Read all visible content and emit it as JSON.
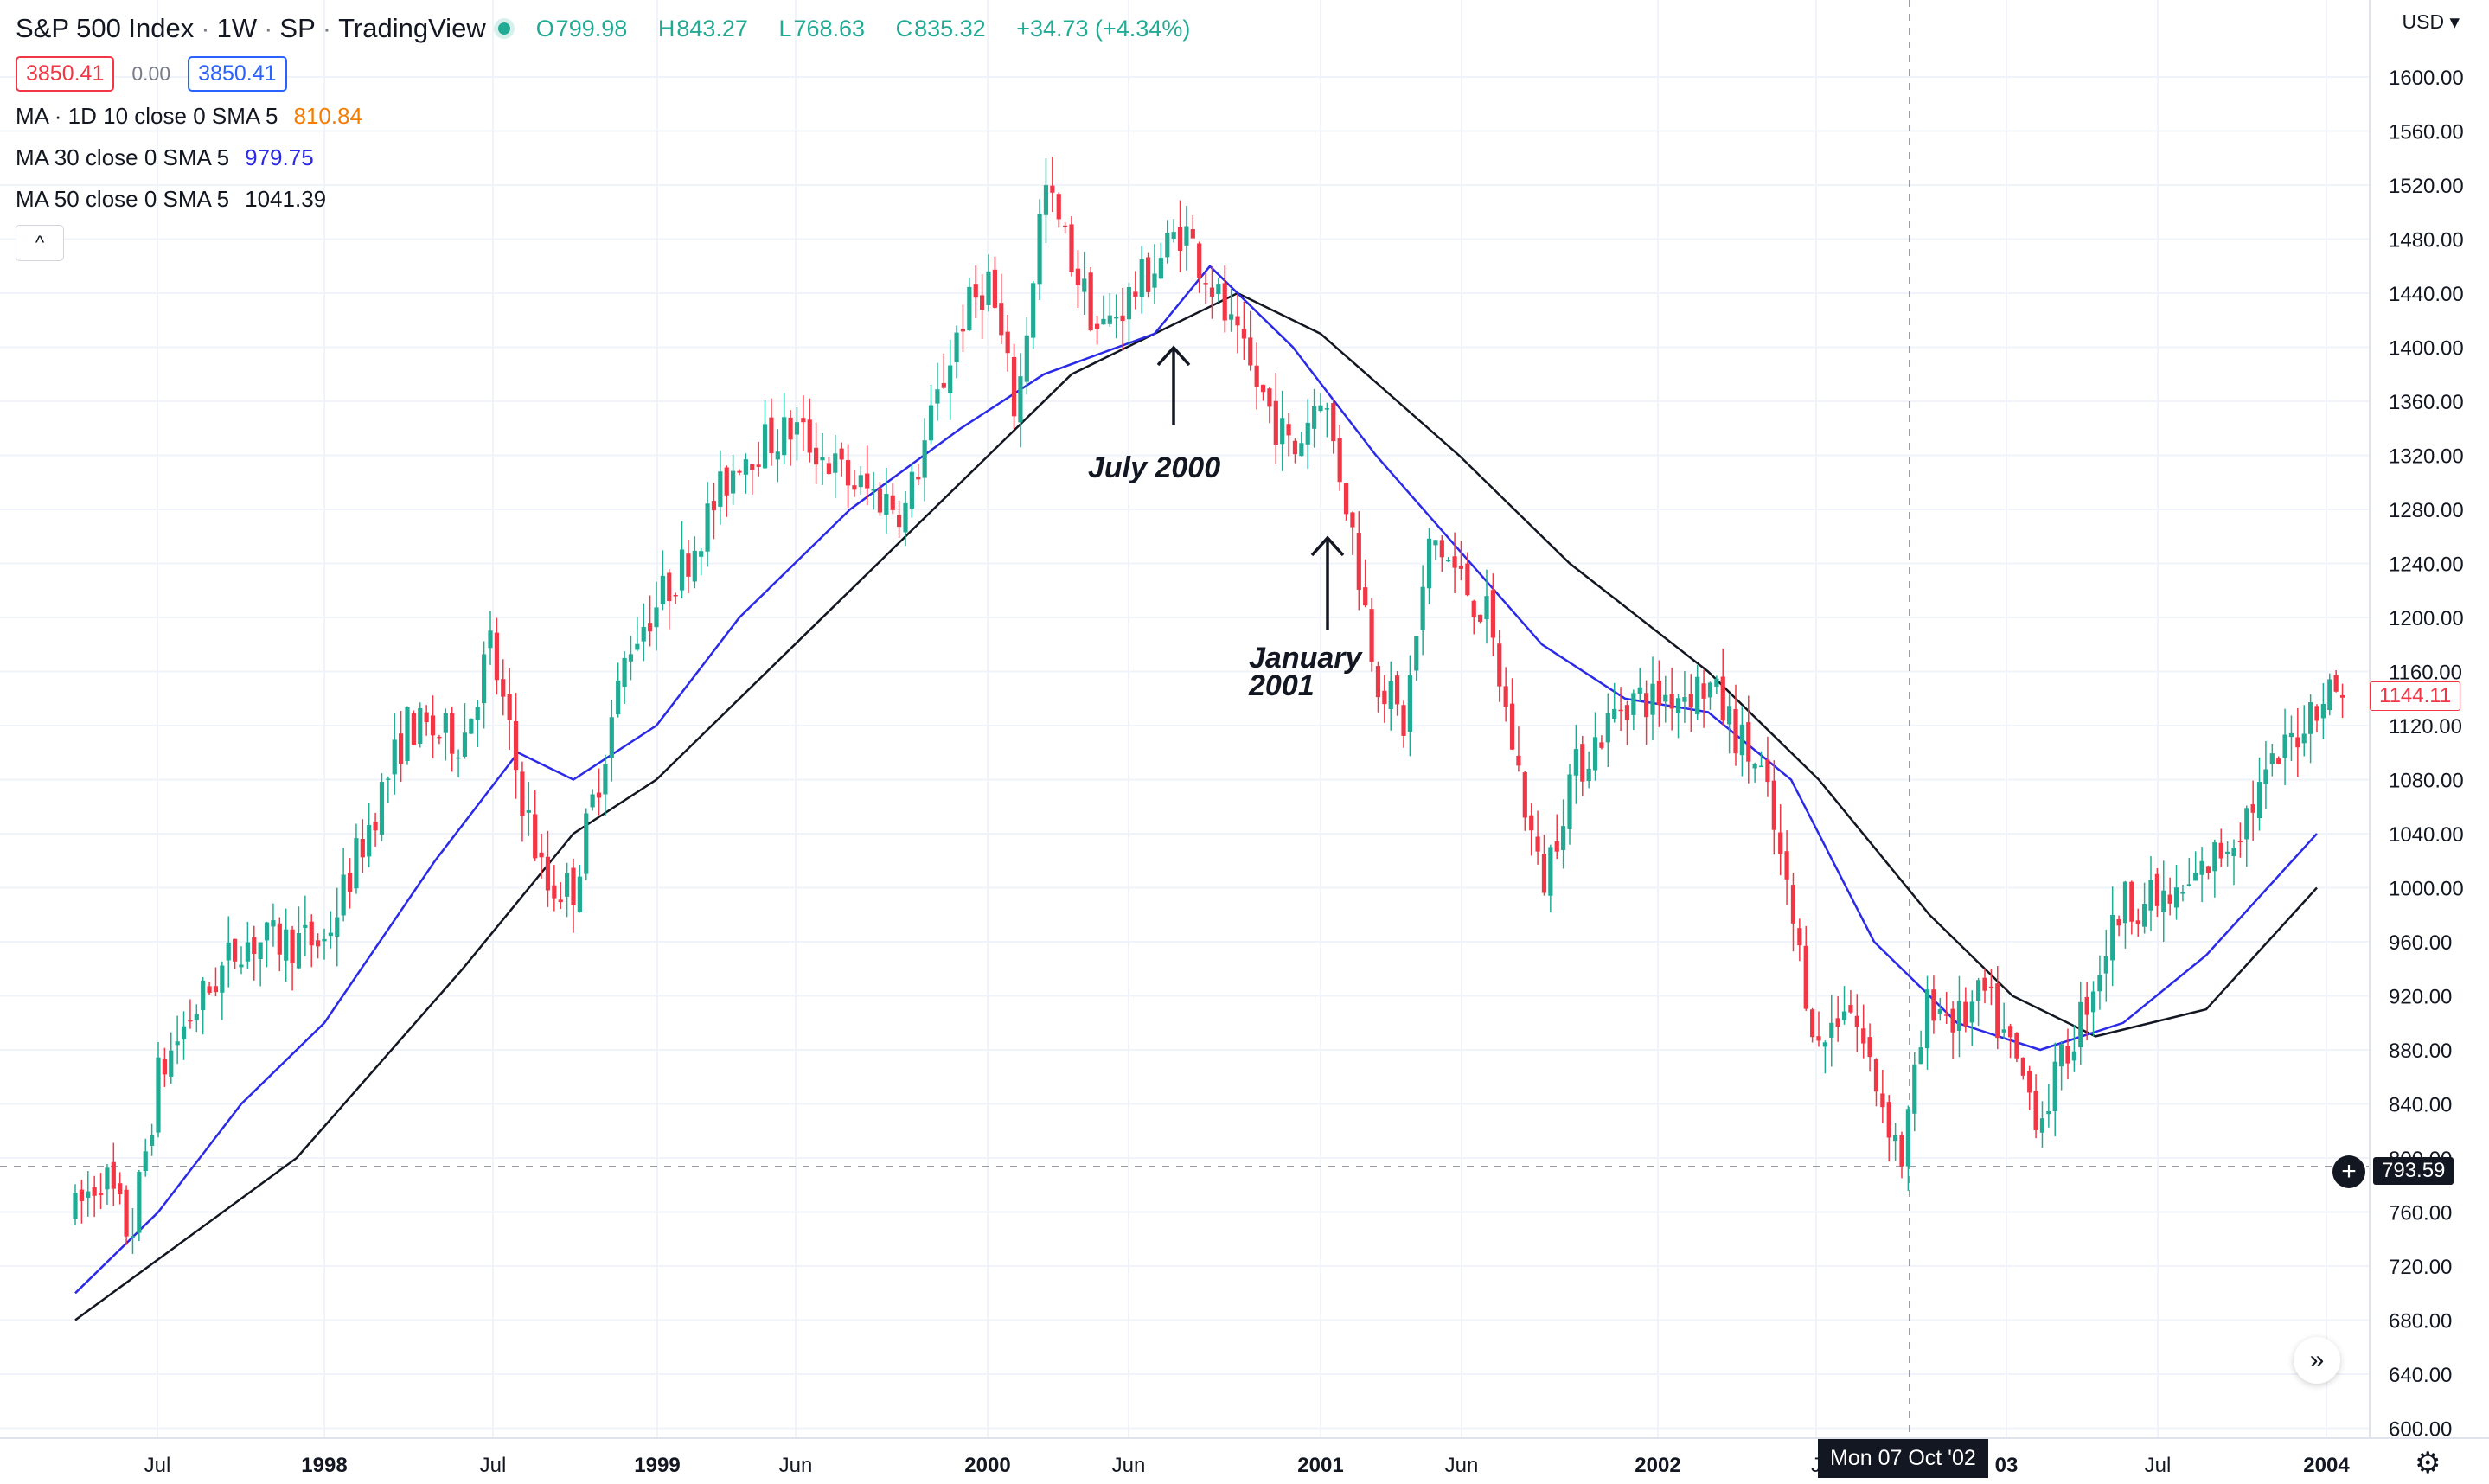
{
  "header": {
    "symbol": "S&P 500 Index",
    "sep1": "·",
    "interval": "1W",
    "sep2": "·",
    "exchange": "SP",
    "sep3": "·",
    "source": "TradingView",
    "ohlc": {
      "open_label": "O",
      "open": "799.98",
      "high_label": "H",
      "high": "843.27",
      "low_label": "L",
      "low": "768.63",
      "close_label": "C",
      "close": "835.32",
      "change": "+34.73 (+4.34%)"
    }
  },
  "price_boxes": {
    "sell": "3850.41",
    "spread": "0.00",
    "buy": "3850.41"
  },
  "indicators": [
    {
      "label": "MA · 1D 10 close 0 SMA 5",
      "value": "810.84",
      "color": "#f57c00"
    },
    {
      "label": "MA 30 close 0 SMA 5",
      "value": "979.75",
      "color": "#2a2ae8"
    },
    {
      "label": "MA 50 close 0 SMA 5",
      "value": "1041.39",
      "color": "#131722"
    }
  ],
  "collapse_icon": "chevron-up-icon",
  "collapse_glyph": "^",
  "currency_label": "USD ▾",
  "current_price_tag": "1144.11",
  "crosshair_price_tag": "793.59",
  "crosshair_date": "Mon 07 Oct '02",
  "crosshair_plus_glyph": "+",
  "scroll_glyph": "»",
  "settings_glyph": "⚙",
  "annotations": {
    "july2000": "July 2000",
    "jan2001_line1": "January",
    "jan2001_line2": "2001"
  },
  "colors": {
    "up": "#22ab94",
    "down": "#f23645",
    "ma30": "#2a2ae8",
    "ma50": "#131722",
    "ma10": "#f57c00"
  },
  "chart_data": {
    "type": "candlestick",
    "y_axis_labels": [
      "1600.00",
      "1560.00",
      "1520.00",
      "1480.00",
      "1440.00",
      "1400.00",
      "1360.00",
      "1320.00",
      "1280.00",
      "1240.00",
      "1200.00",
      "1160.00",
      "1120.00",
      "1080.00",
      "1040.00",
      "1000.00",
      "960.00",
      "920.00",
      "880.00",
      "840.00",
      "800.00",
      "760.00",
      "720.00",
      "680.00",
      "640.00",
      "600.00"
    ],
    "ylim": [
      600,
      1600
    ],
    "x_axis_labels": [
      {
        "label": "Jul",
        "bold": false
      },
      {
        "label": "1998",
        "bold": true
      },
      {
        "label": "Jul",
        "bold": false
      },
      {
        "label": "1999",
        "bold": true
      },
      {
        "label": "Jun",
        "bold": false
      },
      {
        "label": "2000",
        "bold": true
      },
      {
        "label": "Jun",
        "bold": false
      },
      {
        "label": "2001",
        "bold": true
      },
      {
        "label": "Jun",
        "bold": false
      },
      {
        "label": "2002",
        "bold": true
      },
      {
        "label": "J",
        "bold": false
      },
      {
        "label": "03",
        "bold": true
      },
      {
        "label": "Jul",
        "bold": false
      },
      {
        "label": "2004",
        "bold": true
      }
    ],
    "price_path": [
      [
        "1997-04",
        760
      ],
      [
        "1997-05",
        790
      ],
      [
        "1997-06",
        740
      ],
      [
        "1997-07",
        860
      ],
      [
        "1997-08",
        900
      ],
      [
        "1997-10",
        960
      ],
      [
        "1998-01",
        960
      ],
      [
        "1998-04",
        1120
      ],
      [
        "1998-06",
        1110
      ],
      [
        "1998-07",
        1180
      ],
      [
        "1998-08",
        1080
      ],
      [
        "1998-09",
        1000
      ],
      [
        "1998-10",
        1000
      ],
      [
        "1998-12",
        1180
      ],
      [
        "1999-02",
        1240
      ],
      [
        "1999-04",
        1320
      ],
      [
        "1999-06",
        1340
      ],
      [
        "1999-08",
        1300
      ],
      [
        "1999-10",
        1280
      ],
      [
        "1999-12",
        1420
      ],
      [
        "2000-01",
        1450
      ],
      [
        "2000-02",
        1350
      ],
      [
        "2000-03",
        1520
      ],
      [
        "2000-05",
        1410
      ],
      [
        "2000-07",
        1460
      ],
      [
        "2000-08",
        1490
      ],
      [
        "2000-09",
        1450
      ],
      [
        "2000-10",
        1400
      ],
      [
        "2000-12",
        1320
      ],
      [
        "2001-01",
        1370
      ],
      [
        "2001-02",
        1280
      ],
      [
        "2001-03",
        1160
      ],
      [
        "2001-04",
        1120
      ],
      [
        "2001-05",
        1260
      ],
      [
        "2001-07",
        1200
      ],
      [
        "2001-09",
        1000
      ],
      [
        "2001-10",
        1080
      ],
      [
        "2001-12",
        1140
      ],
      [
        "2002-01",
        1140
      ],
      [
        "2002-03",
        1150
      ],
      [
        "2002-05",
        1080
      ],
      [
        "2002-07",
        880
      ],
      [
        "2002-08",
        920
      ],
      [
        "2002-10",
        800
      ],
      [
        "2002-11",
        920
      ],
      [
        "2002-12",
        900
      ],
      [
        "2003-01",
        920
      ],
      [
        "2003-03",
        830
      ],
      [
        "2003-04",
        880
      ],
      [
        "2003-06",
        990
      ],
      [
        "2003-08",
        990
      ],
      [
        "2003-10",
        1040
      ],
      [
        "2004-01",
        1140
      ],
      [
        "2004-02",
        1150
      ]
    ],
    "ma30_path": [
      [
        "1997-04",
        700
      ],
      [
        "1997-07",
        760
      ],
      [
        "1997-10",
        840
      ],
      [
        "1998-01",
        900
      ],
      [
        "1998-05",
        1020
      ],
      [
        "1998-08",
        1100
      ],
      [
        "1998-10",
        1080
      ],
      [
        "1999-01",
        1120
      ],
      [
        "1999-04",
        1200
      ],
      [
        "1999-08",
        1280
      ],
      [
        "1999-12",
        1340
      ],
      [
        "2000-03",
        1380
      ],
      [
        "2000-07",
        1410
      ],
      [
        "2000-09",
        1460
      ],
      [
        "2000-12",
        1400
      ],
      [
        "2001-03",
        1320
      ],
      [
        "2001-06",
        1250
      ],
      [
        "2001-09",
        1180
      ],
      [
        "2001-12",
        1140
      ],
      [
        "2002-03",
        1130
      ],
      [
        "2002-06",
        1080
      ],
      [
        "2002-09",
        960
      ],
      [
        "2002-12",
        900
      ],
      [
        "2003-03",
        880
      ],
      [
        "2003-06",
        900
      ],
      [
        "2003-09",
        950
      ],
      [
        "2004-01",
        1040
      ]
    ],
    "ma50_path": [
      [
        "1997-04",
        680
      ],
      [
        "1997-08",
        740
      ],
      [
        "1997-12",
        800
      ],
      [
        "1998-06",
        940
      ],
      [
        "1998-10",
        1040
      ],
      [
        "1999-01",
        1080
      ],
      [
        "1999-06",
        1180
      ],
      [
        "1999-12",
        1300
      ],
      [
        "2000-04",
        1380
      ],
      [
        "2000-08",
        1420
      ],
      [
        "2000-10",
        1440
      ],
      [
        "2001-01",
        1410
      ],
      [
        "2001-06",
        1320
      ],
      [
        "2001-10",
        1240
      ],
      [
        "2002-03",
        1160
      ],
      [
        "2002-07",
        1080
      ],
      [
        "2002-11",
        980
      ],
      [
        "2003-02",
        920
      ],
      [
        "2003-05",
        890
      ],
      [
        "2003-09",
        910
      ],
      [
        "2004-01",
        1000
      ]
    ]
  }
}
